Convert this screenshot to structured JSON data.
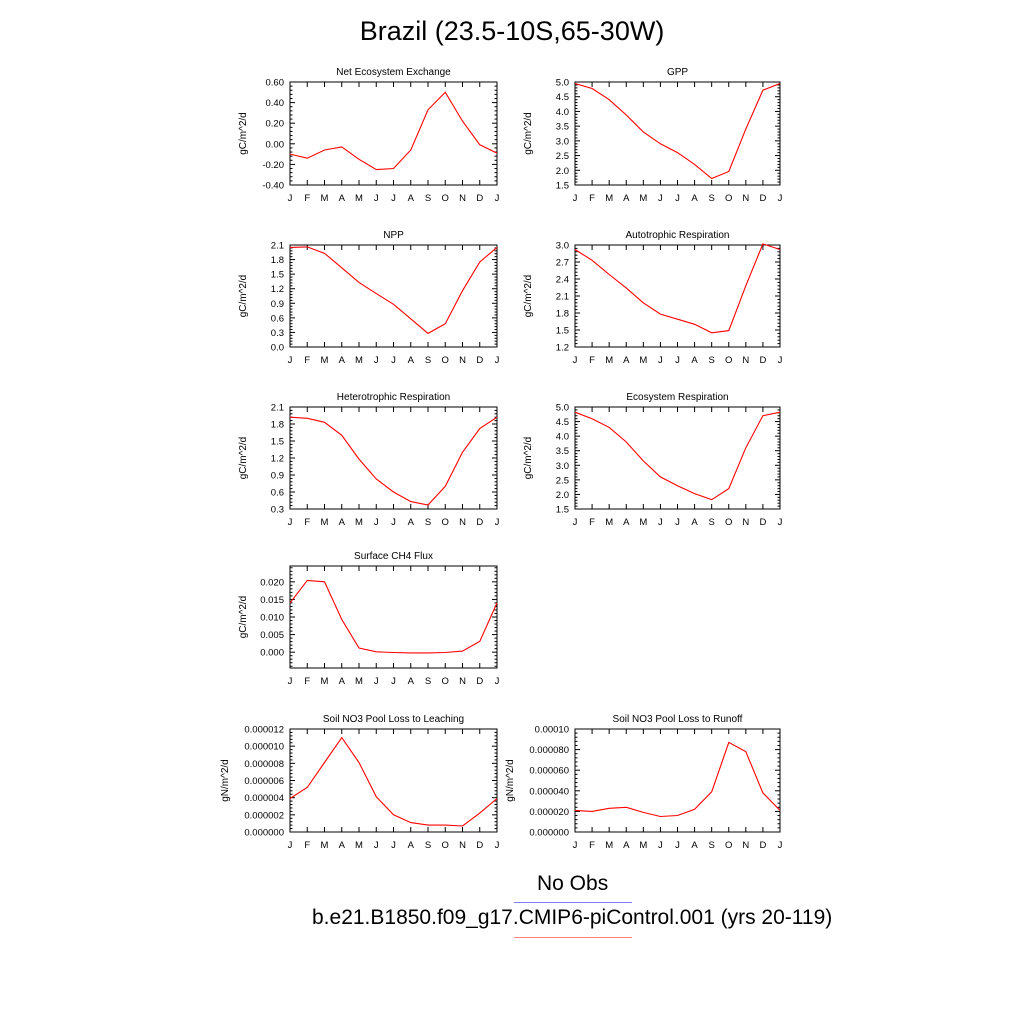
{
  "page_title": "Brazil (23.5-10S,65-30W)",
  "colors": {
    "model_line": "#ff0000",
    "obs_line": "#0000ff",
    "axis": "#000000"
  },
  "legend": {
    "obs_label": "No Obs",
    "model_label": "b.e21.B1850.f09_g17.CMIP6-piControl.001 (yrs 20-119)"
  },
  "chart_data": [
    {
      "type": "line",
      "title": "Net Ecosystem Exchange",
      "ylabel": "gC/m^2/d",
      "categories": [
        "J",
        "F",
        "M",
        "A",
        "M",
        "J",
        "J",
        "A",
        "S",
        "O",
        "N",
        "D",
        "J"
      ],
      "ylim": [
        -0.4,
        0.6
      ],
      "yticks": [
        "-0.40",
        "-0.20",
        "0.00",
        "0.20",
        "0.40",
        "0.60"
      ],
      "series": [
        {
          "values": [
            -0.1,
            -0.14,
            -0.06,
            -0.03,
            -0.15,
            -0.25,
            -0.24,
            -0.06,
            0.33,
            0.5,
            0.22,
            -0.01,
            -0.09
          ]
        }
      ]
    },
    {
      "type": "line",
      "title": "GPP",
      "ylabel": "gC/m^2/d",
      "categories": [
        "J",
        "F",
        "M",
        "A",
        "M",
        "J",
        "J",
        "A",
        "S",
        "O",
        "N",
        "D",
        "J"
      ],
      "ylim": [
        1.5,
        5.0
      ],
      "yticks": [
        "1.5",
        "2.0",
        "2.5",
        "3.0",
        "3.5",
        "4.0",
        "4.5",
        "5.0"
      ],
      "series": [
        {
          "values": [
            4.95,
            4.78,
            4.4,
            3.88,
            3.3,
            2.9,
            2.6,
            2.2,
            1.72,
            1.96,
            3.4,
            4.72,
            4.95
          ]
        }
      ]
    },
    {
      "type": "line",
      "title": "NPP",
      "ylabel": "gC/m^2/d",
      "categories": [
        "J",
        "F",
        "M",
        "A",
        "M",
        "J",
        "J",
        "A",
        "S",
        "O",
        "N",
        "D",
        "J"
      ],
      "ylim": [
        0.0,
        2.1
      ],
      "yticks": [
        "0.0",
        "0.3",
        "0.6",
        "0.9",
        "1.2",
        "1.5",
        "1.8",
        "2.1"
      ],
      "series": [
        {
          "values": [
            2.05,
            2.06,
            1.93,
            1.63,
            1.33,
            1.1,
            0.88,
            0.58,
            0.28,
            0.48,
            1.16,
            1.75,
            2.05
          ]
        }
      ]
    },
    {
      "type": "line",
      "title": "Autotrophic Respiration",
      "ylabel": "gC/m^2/d",
      "categories": [
        "J",
        "F",
        "M",
        "A",
        "M",
        "J",
        "J",
        "A",
        "S",
        "O",
        "N",
        "D",
        "J"
      ],
      "ylim": [
        1.2,
        3.0
      ],
      "yticks": [
        "1.2",
        "1.5",
        "1.8",
        "2.1",
        "2.4",
        "2.7",
        "3.0"
      ],
      "series": [
        {
          "values": [
            2.92,
            2.73,
            2.48,
            2.24,
            1.98,
            1.78,
            1.69,
            1.6,
            1.45,
            1.49,
            2.28,
            3.02,
            2.92
          ]
        }
      ]
    },
    {
      "type": "line",
      "title": "Heterotrophic Respiration",
      "ylabel": "gC/m^2/d",
      "categories": [
        "J",
        "F",
        "M",
        "A",
        "M",
        "J",
        "J",
        "A",
        "S",
        "O",
        "N",
        "D",
        "J"
      ],
      "ylim": [
        0.3,
        2.1
      ],
      "yticks": [
        "0.3",
        "0.6",
        "0.9",
        "1.2",
        "1.5",
        "1.8",
        "2.1"
      ],
      "series": [
        {
          "values": [
            1.92,
            1.9,
            1.83,
            1.6,
            1.18,
            0.83,
            0.6,
            0.43,
            0.37,
            0.7,
            1.3,
            1.72,
            1.92
          ]
        }
      ]
    },
    {
      "type": "line",
      "title": "Ecosystem Respiration",
      "ylabel": "gC/m^2/d",
      "categories": [
        "J",
        "F",
        "M",
        "A",
        "M",
        "J",
        "J",
        "A",
        "S",
        "O",
        "N",
        "D",
        "J"
      ],
      "ylim": [
        1.5,
        5.0
      ],
      "yticks": [
        "1.5",
        "2.0",
        "2.5",
        "3.0",
        "3.5",
        "4.0",
        "4.5",
        "5.0"
      ],
      "series": [
        {
          "values": [
            4.82,
            4.6,
            4.3,
            3.8,
            3.15,
            2.6,
            2.3,
            2.03,
            1.82,
            2.2,
            3.6,
            4.7,
            4.82
          ]
        }
      ]
    },
    {
      "type": "line",
      "title": "Surface CH4 Flux",
      "ylabel": "gC/m^2/d",
      "categories": [
        "J",
        "F",
        "M",
        "A",
        "M",
        "J",
        "J",
        "A",
        "S",
        "O",
        "N",
        "D",
        "J"
      ],
      "ylim": [
        -0.0045,
        0.0245
      ],
      "yticks": [
        "0.000",
        "0.005",
        "0.010",
        "0.015",
        "0.020"
      ],
      "ytick_values": [
        0,
        0.005,
        0.01,
        0.015,
        0.02
      ],
      "series": [
        {
          "values": [
            0.014,
            0.0204,
            0.02,
            0.0093,
            0.0012,
            0.0001,
            -0.0001,
            -0.0002,
            -0.0002,
            -0.0001,
            0.0003,
            0.0031,
            0.014
          ]
        }
      ]
    },
    {
      "type": "line",
      "title": "Soil NO3 Pool Loss to Leaching",
      "ylabel": "gN/m^2/d",
      "categories": [
        "J",
        "F",
        "M",
        "A",
        "M",
        "J",
        "J",
        "A",
        "S",
        "O",
        "N",
        "D",
        "J"
      ],
      "ylim": [
        0,
        1.2e-05
      ],
      "yticks": [
        "0.000000",
        "0.000002",
        "0.000004",
        "0.000006",
        "0.000008",
        "0.000010",
        "0.000012"
      ],
      "series": [
        {
          "values": [
            3.9e-06,
            5.2e-06,
            8.1e-06,
            1.1e-05,
            8.1e-06,
            4.1e-06,
            2e-06,
            1.1e-06,
            8e-07,
            8e-07,
            7e-07,
            2.2e-06,
            3.9e-06
          ]
        }
      ]
    },
    {
      "type": "line",
      "title": "Soil NO3 Pool Loss to Runoff",
      "ylabel": "gN/m^2/d",
      "categories": [
        "J",
        "F",
        "M",
        "A",
        "M",
        "J",
        "J",
        "A",
        "S",
        "O",
        "N",
        "D",
        "J"
      ],
      "ylim": [
        0,
        0.0001
      ],
      "yticks": [
        "0.000000",
        "0.000020",
        "0.000040",
        "0.000060",
        "0.000080",
        "0.00010"
      ],
      "series": [
        {
          "values": [
            2.1e-05,
            2e-05,
            2.3e-05,
            2.4e-05,
            1.9e-05,
            1.5e-05,
            1.6e-05,
            2.2e-05,
            3.9e-05,
            8.7e-05,
            7.8e-05,
            3.8e-05,
            2.1e-05
          ]
        }
      ]
    }
  ]
}
